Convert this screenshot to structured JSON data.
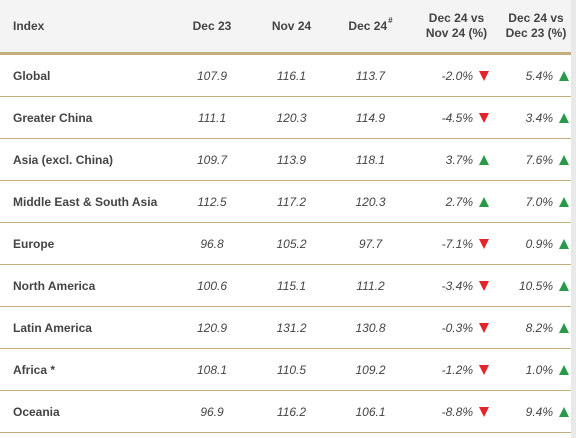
{
  "colors": {
    "accent_rule": "#c6ad7c",
    "up": "#2a9a48",
    "down": "#e3242b",
    "header_bg": "#f4f4f4"
  },
  "header": {
    "index": "Index",
    "dec23": "Dec 23",
    "nov24": "Nov 24",
    "dec24": "Dec 24",
    "dec24_mark": "#",
    "vs_nov_line1": "Dec 24 vs",
    "vs_nov_line2": "Nov 24 (%)",
    "vs_dec_line1": "Dec 24 vs",
    "vs_dec_line2": "Dec 23 (%)"
  },
  "rows": [
    {
      "index": "Global",
      "dec23": "107.9",
      "nov24": "116.1",
      "dec24": "113.7",
      "mom": "-2.0%",
      "mom_dir": "down",
      "yoy": "5.4%",
      "yoy_dir": "up"
    },
    {
      "index": "Greater China",
      "dec23": "111.1",
      "nov24": "120.3",
      "dec24": "114.9",
      "mom": "-4.5%",
      "mom_dir": "down",
      "yoy": "3.4%",
      "yoy_dir": "up"
    },
    {
      "index": "Asia (excl. China)",
      "dec23": "109.7",
      "nov24": "113.9",
      "dec24": "118.1",
      "mom": "3.7%",
      "mom_dir": "up",
      "yoy": "7.6%",
      "yoy_dir": "up"
    },
    {
      "index": "Middle East & South Asia",
      "dec23": "112.5",
      "nov24": "117.2",
      "dec24": "120.3",
      "mom": "2.7%",
      "mom_dir": "up",
      "yoy": "7.0%",
      "yoy_dir": "up"
    },
    {
      "index": "Europe",
      "dec23": "96.8",
      "nov24": "105.2",
      "dec24": "97.7",
      "mom": "-7.1%",
      "mom_dir": "down",
      "yoy": "0.9%",
      "yoy_dir": "up"
    },
    {
      "index": "North America",
      "dec23": "100.6",
      "nov24": "115.1",
      "dec24": "111.2",
      "mom": "-3.4%",
      "mom_dir": "down",
      "yoy": "10.5%",
      "yoy_dir": "up"
    },
    {
      "index": "Latin America",
      "dec23": "120.9",
      "nov24": "131.2",
      "dec24": "130.8",
      "mom": "-0.3%",
      "mom_dir": "down",
      "yoy": "8.2%",
      "yoy_dir": "up"
    },
    {
      "index": "Africa *",
      "dec23": "108.1",
      "nov24": "110.5",
      "dec24": "109.2",
      "mom": "-1.2%",
      "mom_dir": "down",
      "yoy": "1.0%",
      "yoy_dir": "up"
    },
    {
      "index": "Oceania",
      "dec23": "96.9",
      "nov24": "116.2",
      "dec24": "106.1",
      "mom": "-8.8%",
      "mom_dir": "down",
      "yoy": "9.4%",
      "yoy_dir": "up"
    }
  ]
}
